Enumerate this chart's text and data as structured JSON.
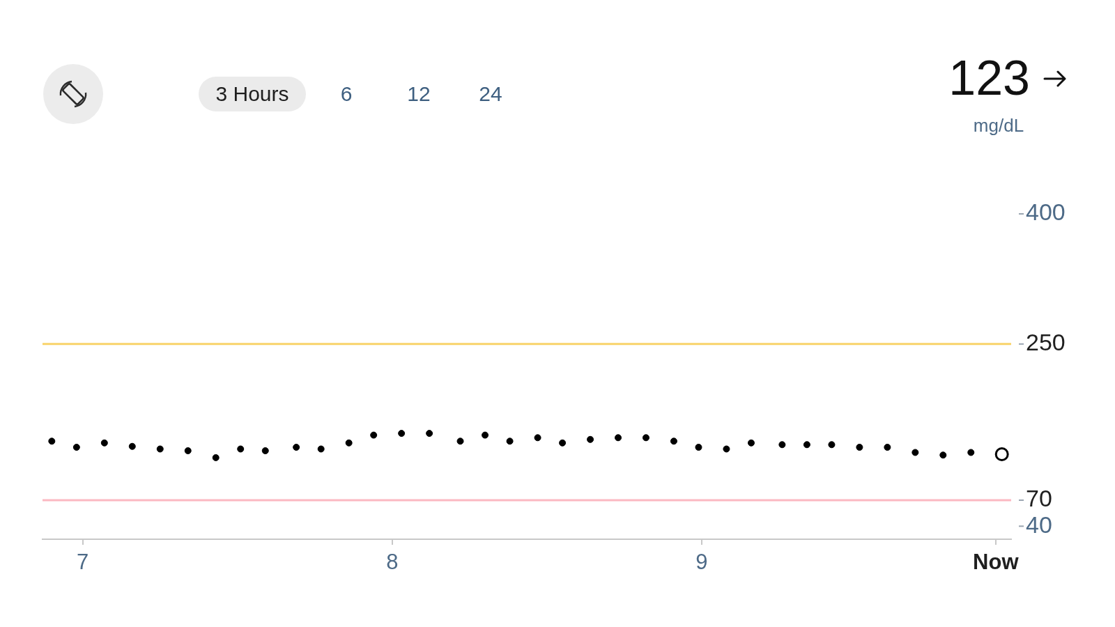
{
  "chart_data": {
    "type": "scatter",
    "annotations": [
      "3 Hours",
      "6",
      "12",
      "24",
      "123",
      "mg/dL"
    ],
    "series": [
      {
        "color": "#000000",
        "x": [
          6.9,
          6.98,
          7.07,
          7.16,
          7.25,
          7.34,
          7.43,
          7.51,
          7.59,
          7.69,
          7.77,
          7.86,
          7.94,
          8.03,
          8.12,
          8.22,
          8.3,
          8.38,
          8.47,
          8.55,
          8.64,
          8.73,
          8.82,
          8.91,
          8.99,
          9.08,
          9.16,
          9.26,
          9.34,
          9.42,
          9.51,
          9.6,
          9.69,
          9.78,
          9.87
        ],
        "values": [
          138,
          131,
          136,
          132,
          129,
          127,
          119,
          129,
          127,
          131,
          129,
          136,
          145,
          147,
          147,
          138,
          145,
          138,
          142,
          136,
          140,
          142,
          142,
          138,
          131,
          129,
          136,
          134,
          134,
          134,
          131,
          131,
          125,
          122,
          125
        ]
      },
      {
        "color": "#000000",
        "x": [
          9.97
        ],
        "values": [
          123
        ]
      }
    ],
    "xlim": [
      6.87,
      10.0
    ],
    "xticks": [
      7,
      8,
      9,
      {
        "value": 9.95,
        "label": "Now"
      }
    ],
    "ylim": [
      25,
      400
    ],
    "yticks": [
      40,
      70,
      250,
      400
    ],
    "ref_lines": [
      {
        "axis": "y",
        "value": 250,
        "color": "#f8d36a"
      },
      {
        "axis": "y",
        "value": 70,
        "color": "#fbb9c2"
      }
    ],
    "marker": "circle",
    "grid": false,
    "legend": false
  }
}
